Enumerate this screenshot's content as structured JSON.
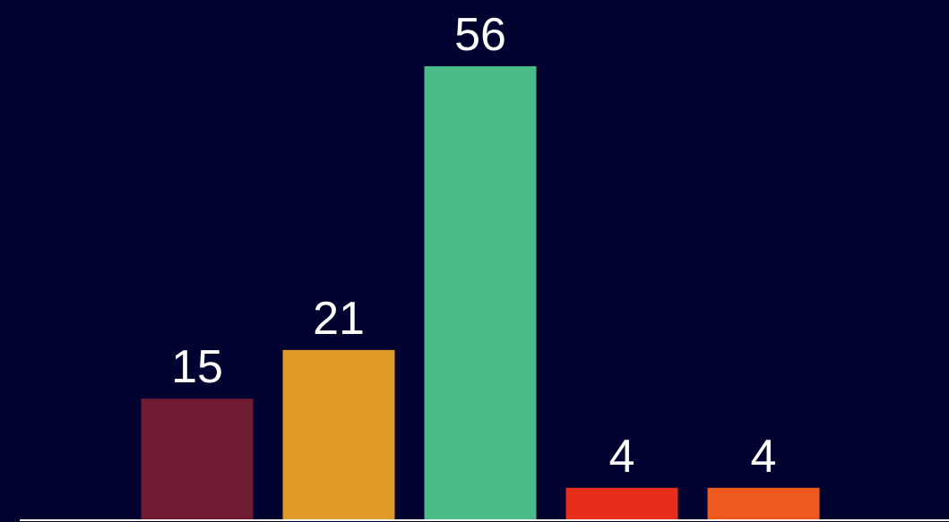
{
  "chart_data": {
    "type": "bar",
    "categories": [
      "",
      "",
      "",
      "",
      ""
    ],
    "values": [
      15,
      21,
      56,
      4,
      4
    ],
    "labels": [
      "15",
      "21",
      "56",
      "4",
      "4"
    ],
    "colors": [
      "#701A33",
      "#E09A28",
      "#4BBC88",
      "#E62E1B",
      "#EE5A1E"
    ],
    "title": "",
    "xlabel": "",
    "ylabel": "",
    "ylim": [
      0,
      56
    ],
    "background": "#000230",
    "axis_color": "#FFFFFF",
    "label_color": "#FFFFFF",
    "grid": false,
    "legend": "none"
  }
}
